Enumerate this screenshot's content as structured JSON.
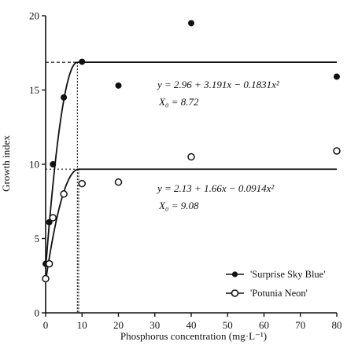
{
  "chart_data": {
    "type": "scatter",
    "xlabel": "Phosphorus concentration (mg·L⁻¹)",
    "ylabel": "Growth index",
    "xlim": [
      0,
      80
    ],
    "ylim": [
      0,
      20
    ],
    "x_ticks": [
      0,
      10,
      20,
      30,
      40,
      50,
      60,
      70,
      80
    ],
    "y_ticks": [
      0,
      5,
      10,
      15,
      20
    ],
    "grid": false,
    "legend_position": "bottom-right",
    "series": [
      {
        "name": "'Surprise Sky Blue'",
        "marker": "filled-circle",
        "points": [
          [
            0,
            3.3
          ],
          [
            1,
            6.1
          ],
          [
            2,
            10.0
          ],
          [
            5,
            14.5
          ],
          [
            10,
            16.9
          ],
          [
            20,
            15.3
          ],
          [
            40,
            19.5
          ],
          [
            80,
            15.9
          ]
        ],
        "fit": {
          "a": 2.96,
          "b": 3.191,
          "c": -0.1831,
          "x0": 8.72,
          "plateau": 16.87
        },
        "equation": "y = 2.96 + 3.191x − 0.1831x²",
        "x0_label": "X₀ = 8.72"
      },
      {
        "name": "'Potunia Neon'",
        "marker": "open-circle",
        "points": [
          [
            0,
            2.3
          ],
          [
            1,
            3.3
          ],
          [
            2,
            6.4
          ],
          [
            5,
            8.0
          ],
          [
            10,
            8.7
          ],
          [
            20,
            8.8
          ],
          [
            40,
            10.5
          ],
          [
            80,
            10.9
          ]
        ],
        "fit": {
          "a": 2.13,
          "b": 1.66,
          "c": -0.0914,
          "x0": 9.08,
          "plateau": 9.67
        },
        "equation": "y = 2.13 + 1.66x − 0.0914x²",
        "x0_label": "X₀ = 9.08"
      }
    ]
  },
  "colors": {
    "ink": "#111111",
    "background": "#ffffff"
  }
}
